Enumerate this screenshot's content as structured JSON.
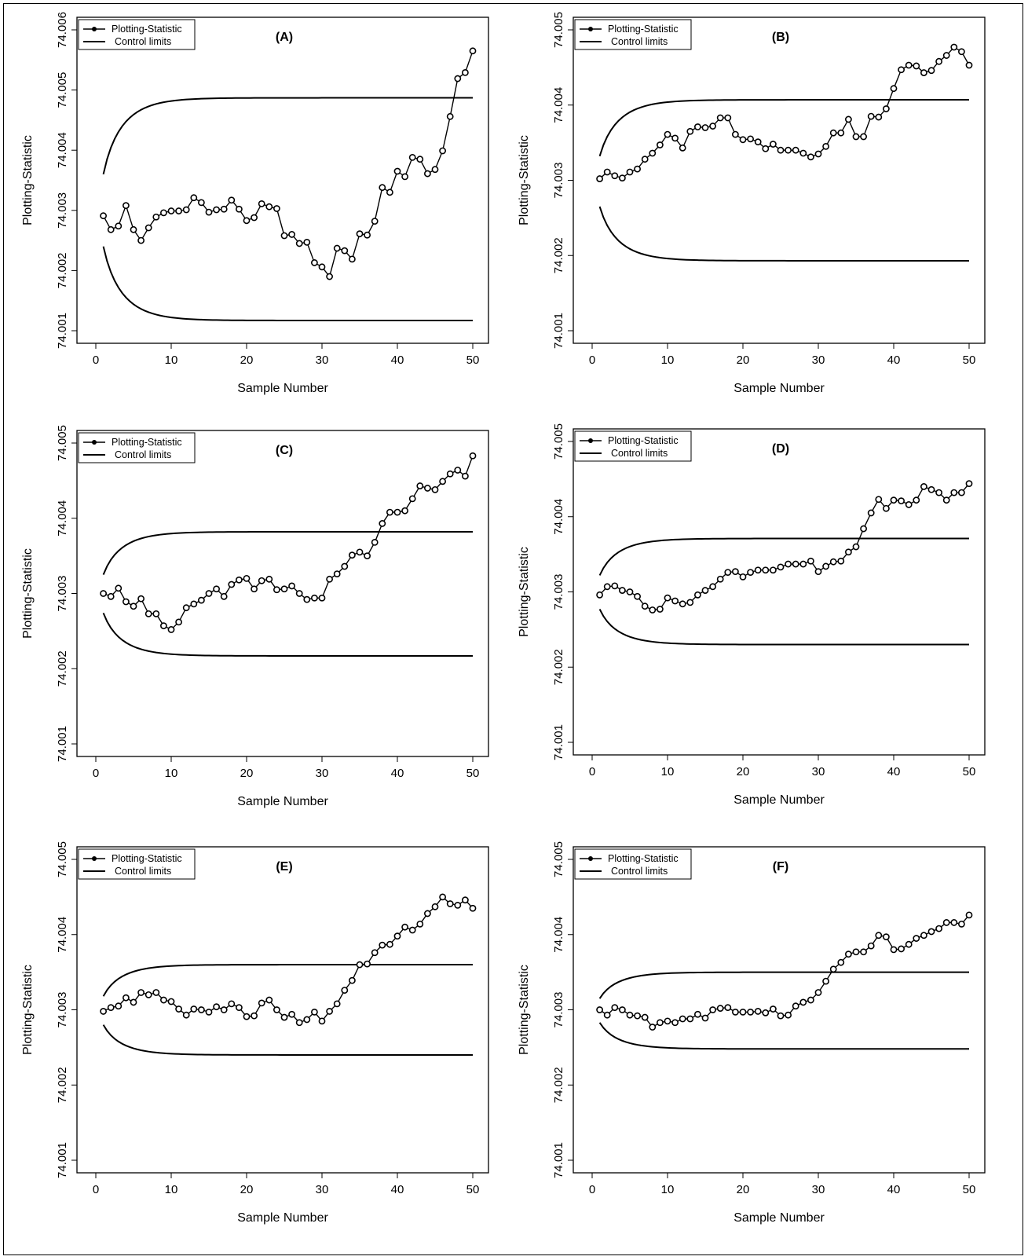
{
  "figure": {
    "ylabel": "Plotting-Statistic",
    "xlabel": "Sample Number",
    "legend": {
      "statistic_label": "Plotting-Statistic",
      "limits_label": "Control limits"
    },
    "colors": {
      "ink": "#000000",
      "background": "#ffffff"
    }
  },
  "chart_data": [
    {
      "panel": "(A)",
      "type": "line",
      "xlabel": "Sample Number",
      "ylabel": "Plotting-Statistic",
      "xlim": [
        0,
        50
      ],
      "ylim": [
        74.001,
        74.006
      ],
      "xticks": [
        0,
        10,
        20,
        30,
        40,
        50
      ],
      "yticks": [
        "74.001",
        "74.002",
        "74.003",
        "74.004",
        "74.005",
        "74.006"
      ],
      "legend_position": "top-left",
      "grid": false,
      "center": 74.003,
      "limits_at_1": [
        74.0024,
        74.0036
      ],
      "limits_at_50": [
        74.00117,
        74.00487
      ],
      "series": [
        {
          "name": "Plotting-Statistic",
          "x": [
            1,
            2,
            3,
            4,
            5,
            6,
            7,
            8,
            9,
            10,
            11,
            12,
            13,
            14,
            15,
            16,
            17,
            18,
            19,
            20,
            21,
            22,
            23,
            24,
            25,
            26,
            27,
            28,
            29,
            30,
            31,
            32,
            33,
            34,
            35,
            36,
            37,
            38,
            39,
            40,
            41,
            42,
            43,
            44,
            45,
            46,
            47,
            48,
            49,
            50
          ],
          "y": [
            74.00291,
            74.00268,
            74.00274,
            74.00308,
            74.00268,
            74.0025,
            74.00271,
            74.00289,
            74.00296,
            74.00299,
            74.00299,
            74.00301,
            74.00321,
            74.00313,
            74.00297,
            74.00301,
            74.00302,
            74.00317,
            74.00302,
            74.00283,
            74.00288,
            74.00311,
            74.00306,
            74.00303,
            74.00258,
            74.0026,
            74.00245,
            74.00247,
            74.00213,
            74.00206,
            74.0019,
            74.00237,
            74.00233,
            74.00219,
            74.00261,
            74.00259,
            74.00282,
            74.00338,
            74.0033,
            74.00365,
            74.00356,
            74.00388,
            74.00385,
            74.00361,
            74.00368,
            74.00399,
            74.00456,
            74.00519,
            74.00529,
            74.00565
          ]
        },
        {
          "name": "Control limits"
        }
      ]
    },
    {
      "panel": "(B)",
      "type": "line",
      "xlabel": "Sample Number",
      "ylabel": "Plotting-Statistic",
      "xlim": [
        0,
        50
      ],
      "ylim": [
        74.001,
        74.005
      ],
      "xticks": [
        0,
        10,
        20,
        30,
        40,
        50
      ],
      "yticks": [
        "74.001",
        "74.002",
        "74.003",
        "74.004",
        "74.005"
      ],
      "legend_position": "top-left",
      "grid": false,
      "center": 74.003,
      "limits_at_1": [
        74.00265,
        74.00332
      ],
      "limits_at_50": [
        74.00193,
        74.00407
      ],
      "series": [
        {
          "name": "Plotting-Statistic",
          "x": [
            1,
            2,
            3,
            4,
            5,
            6,
            7,
            8,
            9,
            10,
            11,
            12,
            13,
            14,
            15,
            16,
            17,
            18,
            19,
            20,
            21,
            22,
            23,
            24,
            25,
            26,
            27,
            28,
            29,
            30,
            31,
            32,
            33,
            34,
            35,
            36,
            37,
            38,
            39,
            40,
            41,
            42,
            43,
            44,
            45,
            46,
            47,
            48,
            49,
            50
          ],
          "y": [
            74.00302,
            74.00311,
            74.00306,
            74.00303,
            74.00311,
            74.00315,
            74.00328,
            74.00336,
            74.00347,
            74.00361,
            74.00356,
            74.00343,
            74.00365,
            74.00371,
            74.0037,
            74.00372,
            74.00383,
            74.00383,
            74.00361,
            74.00354,
            74.00355,
            74.00351,
            74.00342,
            74.00348,
            74.0034,
            74.0034,
            74.0034,
            74.00336,
            74.00331,
            74.00335,
            74.00345,
            74.00363,
            74.00363,
            74.00381,
            74.00358,
            74.00358,
            74.00385,
            74.00384,
            74.00395,
            74.00422,
            74.00447,
            74.00453,
            74.00452,
            74.00443,
            74.00446,
            74.00458,
            74.00466,
            74.00477,
            74.00471,
            74.00453
          ]
        },
        {
          "name": "Control limits"
        }
      ]
    },
    {
      "panel": "(C)",
      "type": "line",
      "xlabel": "Sample Number",
      "ylabel": "Plotting-Statistic",
      "xlim": [
        0,
        50
      ],
      "ylim": [
        74.001,
        74.005
      ],
      "xticks": [
        0,
        10,
        20,
        30,
        40,
        50
      ],
      "yticks": [
        "74.001",
        "74.002",
        "74.003",
        "74.004",
        "74.005"
      ],
      "legend_position": "top-left",
      "grid": false,
      "center": 74.003,
      "limits_at_1": [
        74.00274,
        74.00325
      ],
      "limits_at_50": [
        74.00217,
        74.00382
      ],
      "series": [
        {
          "name": "Plotting-Statistic",
          "x": [
            1,
            2,
            3,
            4,
            5,
            6,
            7,
            8,
            9,
            10,
            11,
            12,
            13,
            14,
            15,
            16,
            17,
            18,
            19,
            20,
            21,
            22,
            23,
            24,
            25,
            26,
            27,
            28,
            29,
            30,
            31,
            32,
            33,
            34,
            35,
            36,
            37,
            38,
            39,
            40,
            41,
            42,
            43,
            44,
            45,
            46,
            47,
            48,
            49,
            50
          ],
          "y": [
            74.003,
            74.00296,
            74.00307,
            74.00289,
            74.00283,
            74.00293,
            74.00273,
            74.00273,
            74.00257,
            74.00252,
            74.00262,
            74.00281,
            74.00286,
            74.00291,
            74.003,
            74.00306,
            74.00296,
            74.00312,
            74.00318,
            74.0032,
            74.00306,
            74.00317,
            74.00319,
            74.00305,
            74.00306,
            74.0031,
            74.003,
            74.00292,
            74.00294,
            74.00294,
            74.00319,
            74.00326,
            74.00336,
            74.00351,
            74.00355,
            74.0035,
            74.00368,
            74.00393,
            74.00408,
            74.00408,
            74.0041,
            74.00426,
            74.00443,
            74.0044,
            74.00438,
            74.00449,
            74.00459,
            74.00464,
            74.00456,
            74.00483
          ]
        },
        {
          "name": "Control limits"
        }
      ]
    },
    {
      "panel": "(D)",
      "type": "line",
      "xlabel": "Sample Number",
      "ylabel": "Plotting-Statistic",
      "xlim": [
        0,
        50
      ],
      "ylim": [
        74.001,
        74.005
      ],
      "xticks": [
        0,
        10,
        20,
        30,
        40,
        50
      ],
      "yticks": [
        "74.001",
        "74.002",
        "74.003",
        "74.004",
        "74.005"
      ],
      "legend_position": "top-left",
      "grid": false,
      "center": 74.003,
      "limits_at_1": [
        74.00277,
        74.00322
      ],
      "limits_at_50": [
        74.0023,
        74.00371
      ],
      "series": [
        {
          "name": "Plotting-Statistic",
          "x": [
            1,
            2,
            3,
            4,
            5,
            6,
            7,
            8,
            9,
            10,
            11,
            12,
            13,
            14,
            15,
            16,
            17,
            18,
            19,
            20,
            21,
            22,
            23,
            24,
            25,
            26,
            27,
            28,
            29,
            30,
            31,
            32,
            33,
            34,
            35,
            36,
            37,
            38,
            39,
            40,
            41,
            42,
            43,
            44,
            45,
            46,
            47,
            48,
            49,
            50
          ],
          "y": [
            74.00296,
            74.00307,
            74.00308,
            74.00302,
            74.003,
            74.00294,
            74.00281,
            74.00276,
            74.00277,
            74.00292,
            74.00288,
            74.00284,
            74.00286,
            74.00296,
            74.00302,
            74.00307,
            74.00317,
            74.00326,
            74.00327,
            74.0032,
            74.00326,
            74.00329,
            74.00329,
            74.00329,
            74.00333,
            74.00337,
            74.00337,
            74.00337,
            74.00341,
            74.00327,
            74.00334,
            74.0034,
            74.00341,
            74.00353,
            74.0036,
            74.00384,
            74.00405,
            74.00423,
            74.00411,
            74.00422,
            74.00421,
            74.00416,
            74.00422,
            74.0044,
            74.00436,
            74.00432,
            74.00422,
            74.00432,
            74.00432,
            74.00444
          ]
        },
        {
          "name": "Control limits"
        }
      ]
    },
    {
      "panel": "(E)",
      "type": "line",
      "xlabel": "Sample Number",
      "ylabel": "Plotting-Statistic",
      "xlim": [
        0,
        50
      ],
      "ylim": [
        74.001,
        74.005
      ],
      "xticks": [
        0,
        10,
        20,
        30,
        40,
        50
      ],
      "yticks": [
        "74.001",
        "74.002",
        "74.003",
        "74.004",
        "74.005"
      ],
      "legend_position": "top-left",
      "grid": false,
      "center": 74.003,
      "limits_at_1": [
        74.0028,
        74.00318
      ],
      "limits_at_50": [
        74.0024,
        74.0036
      ],
      "series": [
        {
          "name": "Plotting-Statistic",
          "x": [
            1,
            2,
            3,
            4,
            5,
            6,
            7,
            8,
            9,
            10,
            11,
            12,
            13,
            14,
            15,
            16,
            17,
            18,
            19,
            20,
            21,
            22,
            23,
            24,
            25,
            26,
            27,
            28,
            29,
            30,
            31,
            32,
            33,
            34,
            35,
            36,
            37,
            38,
            39,
            40,
            41,
            42,
            43,
            44,
            45,
            46,
            47,
            48,
            49,
            50
          ],
          "y": [
            74.00298,
            74.00303,
            74.00305,
            74.00316,
            74.0031,
            74.00323,
            74.0032,
            74.00323,
            74.00313,
            74.00311,
            74.00301,
            74.00293,
            74.00301,
            74.003,
            74.00297,
            74.00304,
            74.003,
            74.00308,
            74.00303,
            74.00291,
            74.00292,
            74.00309,
            74.00313,
            74.003,
            74.0029,
            74.00294,
            74.00283,
            74.00287,
            74.00297,
            74.00285,
            74.00298,
            74.00308,
            74.00326,
            74.00339,
            74.0036,
            74.00361,
            74.00376,
            74.00386,
            74.00387,
            74.00398,
            74.0041,
            74.00406,
            74.00414,
            74.00428,
            74.00437,
            74.0045,
            74.00441,
            74.00439,
            74.00446,
            74.00435
          ]
        },
        {
          "name": "Control limits"
        }
      ]
    },
    {
      "panel": "(F)",
      "type": "line",
      "xlabel": "Sample Number",
      "ylabel": "Plotting-Statistic",
      "xlim": [
        0,
        50
      ],
      "ylim": [
        74.001,
        74.005
      ],
      "xticks": [
        0,
        10,
        20,
        30,
        40,
        50
      ],
      "yticks": [
        "74.001",
        "74.002",
        "74.003",
        "74.004",
        "74.005"
      ],
      "legend_position": "top-left",
      "grid": false,
      "center": 74.003,
      "limits_at_1": [
        74.00283,
        74.00315
      ],
      "limits_at_50": [
        74.00248,
        74.0035
      ],
      "series": [
        {
          "name": "Plotting-Statistic",
          "x": [
            1,
            2,
            3,
            4,
            5,
            6,
            7,
            8,
            9,
            10,
            11,
            12,
            13,
            14,
            15,
            16,
            17,
            18,
            19,
            20,
            21,
            22,
            23,
            24,
            25,
            26,
            27,
            28,
            29,
            30,
            31,
            32,
            33,
            34,
            35,
            36,
            37,
            38,
            39,
            40,
            41,
            42,
            43,
            44,
            45,
            46,
            47,
            48,
            49,
            50
          ],
          "y": [
            74.003,
            74.00293,
            74.00303,
            74.003,
            74.00293,
            74.00292,
            74.0029,
            74.00277,
            74.00283,
            74.00285,
            74.00283,
            74.00288,
            74.00288,
            74.00294,
            74.00289,
            74.003,
            74.00302,
            74.00303,
            74.00297,
            74.00297,
            74.00297,
            74.00298,
            74.00296,
            74.00301,
            74.00292,
            74.00293,
            74.00305,
            74.0031,
            74.00313,
            74.00323,
            74.00338,
            74.00354,
            74.00363,
            74.00374,
            74.00377,
            74.00377,
            74.00385,
            74.00399,
            74.00397,
            74.0038,
            74.00381,
            74.00387,
            74.00395,
            74.00399,
            74.00404,
            74.00408,
            74.00416,
            74.00416,
            74.00414,
            74.00426
          ]
        },
        {
          "name": "Control limits"
        }
      ]
    }
  ]
}
